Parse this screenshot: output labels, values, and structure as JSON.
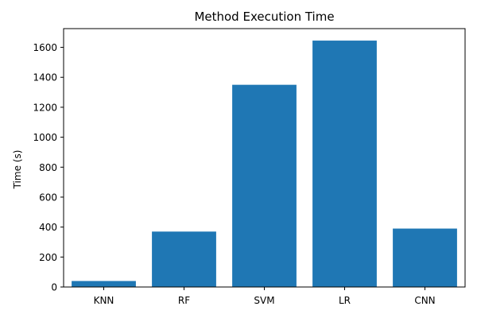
{
  "chart_data": {
    "type": "bar",
    "title": "Method Execution Time",
    "xlabel": "",
    "ylabel": "Time (s)",
    "categories": [
      "KNN",
      "RF",
      "SVM",
      "LR",
      "CNN"
    ],
    "values": [
      40,
      370,
      1350,
      1645,
      390
    ],
    "ylim": [
      0,
      1725
    ],
    "yticks": [
      0,
      200,
      400,
      600,
      800,
      1000,
      1200,
      1400,
      1600
    ],
    "grid": false,
    "legend": "none",
    "bar_color": "#1f77b4"
  }
}
